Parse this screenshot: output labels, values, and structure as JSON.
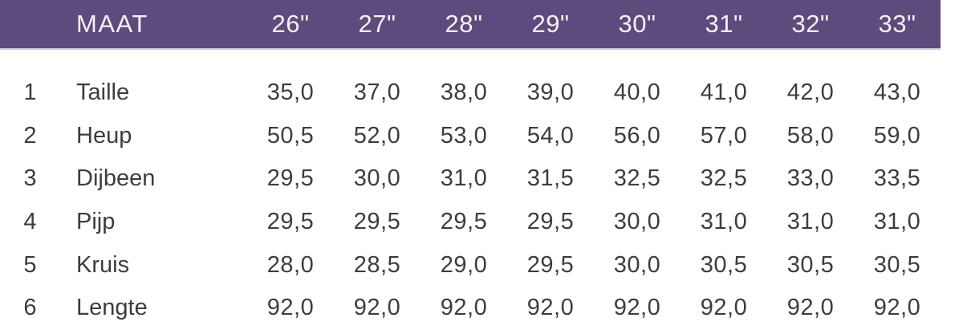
{
  "theme": {
    "header_bg": "#5e4b7d",
    "header_border": "#d0c8dc",
    "header_text_color": "#f3f1f6",
    "body_text_color": "#3d3d3d",
    "page_bg": "#ffffff"
  },
  "table": {
    "header": {
      "label": "MAAT",
      "sizes": [
        "26\"",
        "27\"",
        "28\"",
        "29\"",
        "30\"",
        "31\"",
        "32\"",
        "33\""
      ]
    },
    "rows": [
      {
        "num": "1",
        "label": "Taille",
        "values": [
          "35,0",
          "37,0",
          "38,0",
          "39,0",
          "40,0",
          "41,0",
          "42,0",
          "43,0"
        ]
      },
      {
        "num": "2",
        "label": "Heup",
        "values": [
          "50,5",
          "52,0",
          "53,0",
          "54,0",
          "56,0",
          "57,0",
          "58,0",
          "59,0"
        ]
      },
      {
        "num": "3",
        "label": "Dijbeen",
        "values": [
          "29,5",
          "30,0",
          "31,0",
          "31,5",
          "32,5",
          "32,5",
          "33,0",
          "33,5"
        ]
      },
      {
        "num": "4",
        "label": "Pijp",
        "values": [
          "29,5",
          "29,5",
          "29,5",
          "29,5",
          "30,0",
          "31,0",
          "31,0",
          "31,0"
        ]
      },
      {
        "num": "5",
        "label": "Kruis",
        "values": [
          "28,0",
          "28,5",
          "29,0",
          "29,5",
          "30,0",
          "30,5",
          "30,5",
          "30,5"
        ]
      },
      {
        "num": "6",
        "label": "Lengte",
        "values": [
          "92,0",
          "92,0",
          "92,0",
          "92,0",
          "92,0",
          "92,0",
          "92,0",
          "92,0"
        ]
      }
    ]
  }
}
